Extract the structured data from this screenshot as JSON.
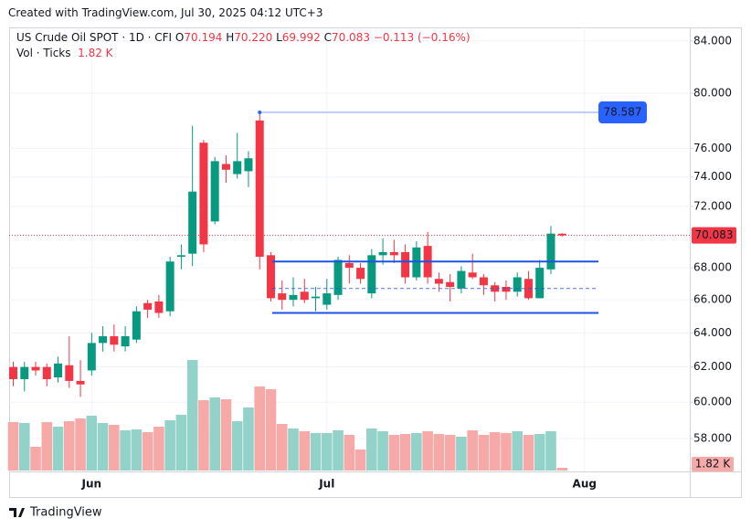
{
  "chart_data": {
    "type": "candlestick",
    "caption": "Created with TradingView.com, Jul 30, 2025 04:12 UTC+3",
    "legend": {
      "symbol": "US Crude Oil SPOT · 1D · CFI",
      "fields": [
        {
          "key": "O",
          "value": "70.194"
        },
        {
          "key": "H",
          "value": "70.220"
        },
        {
          "key": "L",
          "value": "69.992"
        },
        {
          "key": "C",
          "value": "70.083"
        }
      ],
      "change": "−0.113 (−0.16%)",
      "volume": "Vol · Ticks",
      "volume_value": "1.82 K"
    },
    "brand": "TradingView",
    "categories": [
      null,
      null,
      null,
      null,
      null,
      null,
      null,
      "Jun",
      null,
      null,
      null,
      null,
      null,
      null,
      null,
      null,
      null,
      null,
      null,
      null,
      null,
      null,
      null,
      null,
      null,
      null,
      null,
      null,
      "Jul",
      null,
      null,
      null,
      null,
      null,
      null,
      null,
      null,
      null,
      null,
      null,
      null,
      null,
      null,
      null,
      null,
      null,
      null,
      null,
      null,
      null,
      null,
      "Aug"
    ],
    "open": [
      62.0,
      61.3,
      62.0,
      62.0,
      61.4,
      62.1,
      61.2,
      61.8,
      63.4,
      63.8,
      63.2,
      63.6,
      65.8,
      65.9,
      65.3,
      68.7,
      68.9,
      76.4,
      71.0,
      74.9,
      74.2,
      74.4,
      78.0,
      68.8,
      66.4,
      66.0,
      66.5,
      66.1,
      65.7,
      66.3,
      68.3,
      68.0,
      66.4,
      68.8,
      69.0,
      69.0,
      67.4,
      69.4,
      67.3,
      67.1,
      66.7,
      67.7,
      67.4,
      66.9,
      66.8,
      66.5,
      67.3,
      66.1,
      67.9,
      70.194,
      null,
      null
    ],
    "high": [
      62.3,
      62.3,
      62.3,
      62.2,
      62.6,
      63.8,
      62.4,
      64.0,
      64.4,
      64.5,
      64.4,
      65.6,
      66.0,
      66.3,
      68.7,
      69.5,
      77.6,
      76.6,
      75.4,
      75.5,
      77.1,
      75.8,
      78.587,
      69.0,
      67.2,
      67.4,
      67.3,
      66.8,
      67.3,
      68.7,
      68.8,
      68.3,
      69.2,
      69.9,
      69.8,
      69.5,
      69.7,
      70.3,
      67.7,
      67.6,
      68.1,
      68.9,
      67.6,
      67.1,
      67.2,
      67.7,
      67.8,
      68.5,
      70.7,
      70.22,
      null,
      null
    ],
    "low": [
      60.9,
      60.6,
      61.5,
      60.9,
      61.1,
      60.8,
      60.3,
      61.5,
      62.9,
      62.9,
      62.9,
      63.4,
      64.9,
      64.9,
      65.0,
      67.9,
      68.1,
      69.0,
      70.8,
      73.6,
      73.9,
      73.3,
      67.9,
      65.9,
      65.4,
      65.6,
      65.8,
      65.3,
      65.4,
      66.0,
      67.0,
      67.0,
      66.1,
      68.2,
      68.3,
      67.0,
      67.2,
      67.0,
      66.5,
      65.9,
      66.4,
      67.3,
      66.3,
      65.9,
      66.0,
      66.2,
      66.0,
      66.1,
      67.6,
      69.992,
      null,
      null
    ],
    "close": [
      61.3,
      62.0,
      61.8,
      61.3,
      62.2,
      61.2,
      61.0,
      63.4,
      63.8,
      63.3,
      63.8,
      65.3,
      65.4,
      65.2,
      68.4,
      68.8,
      73.0,
      69.5,
      75.1,
      74.5,
      75.1,
      75.3,
      68.7,
      66.1,
      66.0,
      66.3,
      66.0,
      66.2,
      66.4,
      68.5,
      68.0,
      67.3,
      68.8,
      69.0,
      68.8,
      67.4,
      69.3,
      67.4,
      67.0,
      66.8,
      67.8,
      67.4,
      66.9,
      66.5,
      66.5,
      67.4,
      66.1,
      68.0,
      70.2,
      70.083,
      null,
      null
    ],
    "volume": [
      31800,
      31200,
      15600,
      31800,
      28800,
      32400,
      34200,
      36000,
      31200,
      30000,
      26400,
      27000,
      25200,
      28800,
      33000,
      36600,
      72600,
      46200,
      48000,
      46800,
      32400,
      41400,
      55200,
      53400,
      30600,
      27600,
      25800,
      24600,
      24600,
      26400,
      23400,
      13800,
      27600,
      25800,
      23400,
      24000,
      24600,
      25800,
      24000,
      23400,
      22200,
      26400,
      23400,
      25200,
      24600,
      25800,
      23400,
      24000,
      25800,
      1820,
      null,
      null
    ],
    "vlim": [
      0,
      80000
    ],
    "up_color": "#089981",
    "down_color": "#f23645",
    "up_volume_color": "#92d2c9",
    "down_volume_color": "#f7a9a7",
    "log_scale": true,
    "grid": true,
    "ylim": [
      56.3,
      84.7
    ],
    "yticks": [
      {
        "value": 84,
        "label": "84.000"
      },
      {
        "value": 80,
        "label": "80.000"
      },
      {
        "value": 76,
        "label": "76.000"
      },
      {
        "value": 74,
        "label": "74.000"
      },
      {
        "value": 72,
        "label": "72.000"
      },
      {
        "value": 68,
        "label": "68.000"
      },
      {
        "value": 66,
        "label": "66.000"
      },
      {
        "value": 64,
        "label": "64.000"
      },
      {
        "value": 62,
        "label": "62.000"
      },
      {
        "value": 60,
        "label": "60.000"
      },
      {
        "value": 58,
        "label": "58.000"
      }
    ],
    "last_price": {
      "value": 70.083,
      "label": "70.083"
    },
    "price_line": {
      "value": 78.587,
      "label": "78.587",
      "color": "#2962ff"
    },
    "range": {
      "top": 68.4,
      "middle": 66.7,
      "bottom": 65.2,
      "color": "#1e53e5"
    }
  }
}
